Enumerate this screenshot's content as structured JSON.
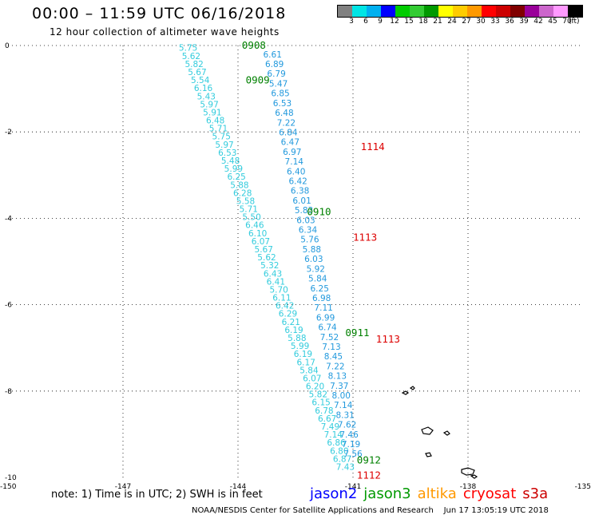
{
  "header": {
    "title": "00:00 – 11:59 UTC 06/16/2018",
    "subtitle": "12 hour collection of altimeter wave heights"
  },
  "colorbar": {
    "unit": "(ft)",
    "colors": [
      "#808080",
      "#00e5e5",
      "#00b0f0",
      "#0000ff",
      "#00cc00",
      "#33cc33",
      "#009900",
      "#ffff00",
      "#ffcc00",
      "#ff9900",
      "#ff0000",
      "#cc0000",
      "#800000",
      "#990099",
      "#cc66cc",
      "#ff99ff",
      "#000000"
    ],
    "labels": [
      "3",
      "6",
      "9",
      "12",
      "15",
      "18",
      "21",
      "24",
      "27",
      "30",
      "33",
      "36",
      "39",
      "42",
      "45",
      "70"
    ]
  },
  "axes": {
    "x_ticks": [
      "-150",
      "-147",
      "-144",
      "-141",
      "-138",
      "-135"
    ],
    "y_ticks": [
      "0",
      "-2",
      "-4",
      "-6",
      "-8",
      "-10"
    ],
    "lon_range": [
      -150,
      -135
    ],
    "lat_range": [
      -10,
      0
    ]
  },
  "tracks": [
    {
      "color": "#33ccdd",
      "start": [
        -145.3,
        -0.05
      ],
      "end": [
        -141.2,
        -9.75
      ],
      "values": [
        "5.75",
        "5.62",
        "5.82",
        "5.67",
        "5.54",
        "6.16",
        "5.43",
        "5.97",
        "5.91",
        "6.48",
        "5.71",
        "5.75",
        "5.97",
        "6.53",
        "5.48",
        "5.99",
        "6.25",
        "5.88",
        "6.28",
        "5.58",
        "5.71",
        "5.50",
        "6.46",
        "6.10",
        "6.07",
        "5.67",
        "5.62",
        "5.32",
        "6.43",
        "6.41",
        "5.70",
        "6.11",
        "6.42",
        "6.29",
        "6.21",
        "6.19",
        "5.88",
        "5.99",
        "6.19",
        "6.17",
        "5.84",
        "6.07",
        "6.20",
        "5.82",
        "6.15",
        "6.78",
        "6.67",
        "7.49",
        "7.14",
        "6.86",
        "6.80",
        "6.87",
        "7.43"
      ]
    },
    {
      "color": "#2299dd",
      "start": [
        -143.1,
        -0.2
      ],
      "end": [
        -141.0,
        -9.45
      ],
      "values": [
        "6.61",
        "6.89",
        "6.79",
        "5.47",
        "6.85",
        "6.53",
        "6.48",
        "7.22",
        "6.84",
        "6.47",
        "6.97",
        "7.14",
        "6.40",
        "6.42",
        "6.38",
        "6.01",
        "5.83",
        "6.03",
        "6.34",
        "5.76",
        "5.88",
        "6.03",
        "5.92",
        "5.84",
        "6.25",
        "6.98",
        "7.11",
        "6.99",
        "6.74",
        "7.52",
        "7.13",
        "8.45",
        "7.22",
        "8.13",
        "7.37",
        "8.00",
        "7.14",
        "8.31",
        "7.62",
        "7.46",
        "7.19",
        "7.56"
      ]
    }
  ],
  "time_labels": [
    {
      "text": "0908",
      "lon": -143.9,
      "lat": 0.0,
      "color": "#008000"
    },
    {
      "text": "0909",
      "lon": -143.8,
      "lat": -0.8,
      "color": "#008000"
    },
    {
      "text": "0910",
      "lon": -142.2,
      "lat": -3.85,
      "color": "#008000"
    },
    {
      "text": "0911",
      "lon": -141.2,
      "lat": -6.65,
      "color": "#008000"
    },
    {
      "text": "0912",
      "lon": -140.9,
      "lat": -9.6,
      "color": "#008000"
    },
    {
      "text": "1114",
      "lon": -140.8,
      "lat": -2.35,
      "color": "#dd0000"
    },
    {
      "text": "1113",
      "lon": -141.0,
      "lat": -4.45,
      "color": "#dd0000"
    },
    {
      "text": "1113",
      "lon": -140.4,
      "lat": -6.8,
      "color": "#dd0000"
    },
    {
      "text": "1112",
      "lon": -140.9,
      "lat": -9.95,
      "color": "#dd0000"
    }
  ],
  "note": "note: 1) Time is in UTC; 2) SWH is in feet",
  "legend": [
    {
      "name": "jason2",
      "color": "#0000ff"
    },
    {
      "name": "jason3",
      "color": "#009900"
    },
    {
      "name": "altika",
      "color": "#ff9900"
    },
    {
      "name": "cryosat",
      "color": "#ff0000"
    },
    {
      "name": "s3a",
      "color": "#cc0000"
    }
  ],
  "credit": "NOAA/NESDIS Center for Satellite Applications and Research    Jun 17 13:05:19 UTC 2018"
}
